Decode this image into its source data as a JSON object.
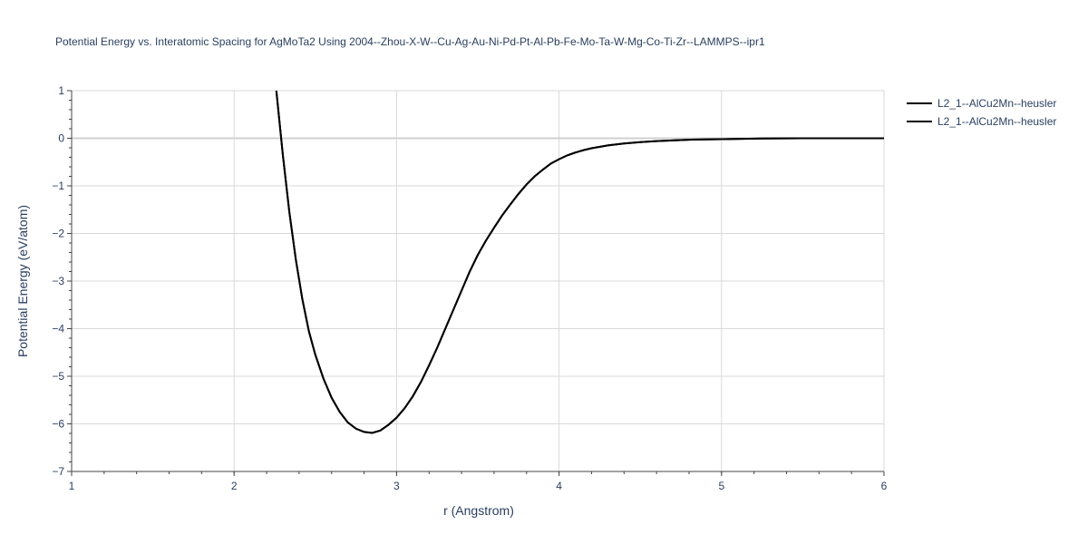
{
  "chart_data": {
    "type": "line",
    "title": "Potential Energy vs. Interatomic Spacing for AgMoTa2 Using 2004--Zhou-X-W--Cu-Ag-Au-Ni-Pd-Pt-Al-Pb-Fe-Mo-Ta-W-Mg-Co-Ti-Zr--LAMMPS--ipr1",
    "xlabel": "r (Angstrom)",
    "ylabel": "Potential Energy (eV/atom)",
    "xlim": [
      1,
      6
    ],
    "ylim": [
      -7,
      1
    ],
    "xticks": [
      1,
      2,
      3,
      4,
      5,
      6
    ],
    "yticks": [
      1,
      0,
      -1,
      -2,
      -3,
      -4,
      -5,
      -6,
      -7
    ],
    "ytick_labels": [
      "1",
      "0",
      "−1",
      "−2",
      "−3",
      "−4",
      "−5",
      "−6",
      "−7"
    ],
    "grid": true,
    "legend_position": "top-right",
    "series": [
      {
        "name": "L2_1--AlCu2Mn--heusler",
        "color": "#000000",
        "x": [
          2.26,
          2.3,
          2.34,
          2.38,
          2.42,
          2.46,
          2.5,
          2.55,
          2.6,
          2.65,
          2.7,
          2.75,
          2.8,
          2.85,
          2.9,
          2.95,
          3.0,
          3.05,
          3.1,
          3.15,
          3.2,
          3.25,
          3.3,
          3.35,
          3.4,
          3.45,
          3.5,
          3.55,
          3.6,
          3.65,
          3.7,
          3.75,
          3.8,
          3.85,
          3.9,
          3.95,
          4.0,
          4.05,
          4.1,
          4.15,
          4.2,
          4.3,
          4.4,
          4.5,
          4.6,
          4.8,
          5.0,
          5.25,
          5.5,
          5.75,
          6.0
        ],
        "y": [
          1.0,
          -0.35,
          -1.55,
          -2.55,
          -3.38,
          -4.05,
          -4.55,
          -5.05,
          -5.45,
          -5.75,
          -5.97,
          -6.1,
          -6.17,
          -6.19,
          -6.14,
          -6.02,
          -5.87,
          -5.67,
          -5.42,
          -5.12,
          -4.77,
          -4.4,
          -4.0,
          -3.6,
          -3.2,
          -2.8,
          -2.45,
          -2.15,
          -1.88,
          -1.62,
          -1.39,
          -1.17,
          -0.97,
          -0.8,
          -0.66,
          -0.53,
          -0.44,
          -0.36,
          -0.3,
          -0.25,
          -0.21,
          -0.15,
          -0.11,
          -0.08,
          -0.06,
          -0.03,
          -0.02,
          -0.005,
          0.0,
          0.0,
          0.0
        ]
      },
      {
        "name": "L2_1--AlCu2Mn--heusler",
        "color": "#000000",
        "x": [
          2.26,
          2.3,
          2.34,
          2.38,
          2.42,
          2.46,
          2.5,
          2.55,
          2.6,
          2.65,
          2.7,
          2.75,
          2.8,
          2.85,
          2.9,
          2.95,
          3.0,
          3.05,
          3.1,
          3.15,
          3.2,
          3.25,
          3.3,
          3.35,
          3.4,
          3.45,
          3.5,
          3.55,
          3.6,
          3.65,
          3.7,
          3.75,
          3.8,
          3.85,
          3.9,
          3.95,
          4.0,
          4.05,
          4.1,
          4.15,
          4.2,
          4.3,
          4.4,
          4.5,
          4.6,
          4.8,
          5.0,
          5.25,
          5.5,
          5.75,
          6.0
        ],
        "y": [
          1.0,
          -0.35,
          -1.55,
          -2.55,
          -3.38,
          -4.05,
          -4.55,
          -5.05,
          -5.45,
          -5.75,
          -5.97,
          -6.1,
          -6.17,
          -6.19,
          -6.14,
          -6.02,
          -5.87,
          -5.67,
          -5.42,
          -5.12,
          -4.77,
          -4.4,
          -4.0,
          -3.6,
          -3.2,
          -2.8,
          -2.45,
          -2.15,
          -1.88,
          -1.62,
          -1.39,
          -1.17,
          -0.97,
          -0.8,
          -0.66,
          -0.53,
          -0.44,
          -0.36,
          -0.3,
          -0.25,
          -0.21,
          -0.15,
          -0.11,
          -0.08,
          -0.06,
          -0.03,
          -0.02,
          -0.005,
          0.0,
          0.0,
          0.0
        ]
      }
    ]
  }
}
